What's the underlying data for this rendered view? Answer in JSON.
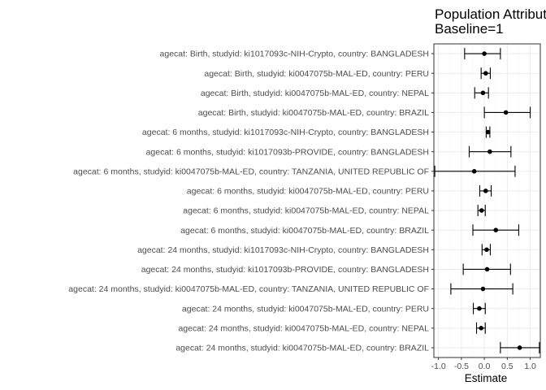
{
  "chart_data": {
    "type": "forest",
    "title_lines": [
      "Population Attributable Fraction",
      "Baseline=1"
    ],
    "xlabel": "Estimate",
    "xlim": [
      -1.1,
      1.22
    ],
    "x_ticks": [
      -1.0,
      -0.5,
      0.0,
      0.5,
      1.0
    ],
    "x_tick_labels": [
      "-1.0",
      "-0.5",
      "0.0",
      "0.5",
      "1.0"
    ],
    "grid": true,
    "colors": {
      "panel_border": "#333333",
      "grid_major": "#ebebeb",
      "grid_minor": "#f5f5f5",
      "point": "#000000"
    },
    "rows": [
      {
        "label": "agecat: Birth, studyid: ki1017093c-NIH-Crypto, country: BANGLADESH",
        "estimate": 0.0,
        "lower": -0.43,
        "upper": 0.35
      },
      {
        "label": "agecat: Birth, studyid: ki0047075b-MAL-ED, country: PERU",
        "estimate": 0.03,
        "lower": -0.07,
        "upper": 0.13
      },
      {
        "label": "agecat: Birth, studyid: ki0047075b-MAL-ED, country: NEPAL",
        "estimate": -0.03,
        "lower": -0.21,
        "upper": 0.09
      },
      {
        "label": "agecat: Birth, studyid: ki0047075b-MAL-ED, country: BRAZIL",
        "estimate": 0.47,
        "lower": 0.0,
        "upper": 1.0
      },
      {
        "label": "agecat: 6 months, studyid: ki1017093c-NIH-Crypto, country: BANGLADESH",
        "estimate": 0.08,
        "lower": 0.04,
        "upper": 0.12
      },
      {
        "label": "agecat: 6 months, studyid: ki1017093b-PROVIDE, country: BANGLADESH",
        "estimate": 0.12,
        "lower": -0.33,
        "upper": 0.58
      },
      {
        "label": "agecat: 6 months, studyid: ki0047075b-MAL-ED, country: TANZANIA, UNITED REPUBLIC OF",
        "estimate": -0.22,
        "lower": -1.08,
        "upper": 0.67
      },
      {
        "label": "agecat: 6 months, studyid: ki0047075b-MAL-ED, country: PERU",
        "estimate": 0.03,
        "lower": -0.1,
        "upper": 0.15
      },
      {
        "label": "agecat: 6 months, studyid: ki0047075b-MAL-ED, country: NEPAL",
        "estimate": -0.06,
        "lower": -0.14,
        "upper": 0.02
      },
      {
        "label": "agecat: 6 months, studyid: ki0047075b-MAL-ED, country: BRAZIL",
        "estimate": 0.25,
        "lower": -0.25,
        "upper": 0.75
      },
      {
        "label": "agecat: 24 months, studyid: ki1017093c-NIH-Crypto, country: BANGLADESH",
        "estimate": 0.05,
        "lower": -0.05,
        "upper": 0.13
      },
      {
        "label": "agecat: 24 months, studyid: ki1017093b-PROVIDE, country: BANGLADESH",
        "estimate": 0.06,
        "lower": -0.46,
        "upper": 0.57
      },
      {
        "label": "agecat: 24 months, studyid: ki0047075b-MAL-ED, country: TANZANIA, UNITED REPUBLIC OF",
        "estimate": -0.03,
        "lower": -0.73,
        "upper": 0.62
      },
      {
        "label": "agecat: 24 months, studyid: ki0047075b-MAL-ED, country: PERU",
        "estimate": -0.11,
        "lower": -0.24,
        "upper": 0.02
      },
      {
        "label": "agecat: 24 months, studyid: ki0047075b-MAL-ED, country: NEPAL",
        "estimate": -0.07,
        "lower": -0.17,
        "upper": 0.02
      },
      {
        "label": "agecat: 24 months, studyid: ki0047075b-MAL-ED, country: BRAZIL",
        "estimate": 0.77,
        "lower": 0.35,
        "upper": 1.2
      }
    ]
  }
}
